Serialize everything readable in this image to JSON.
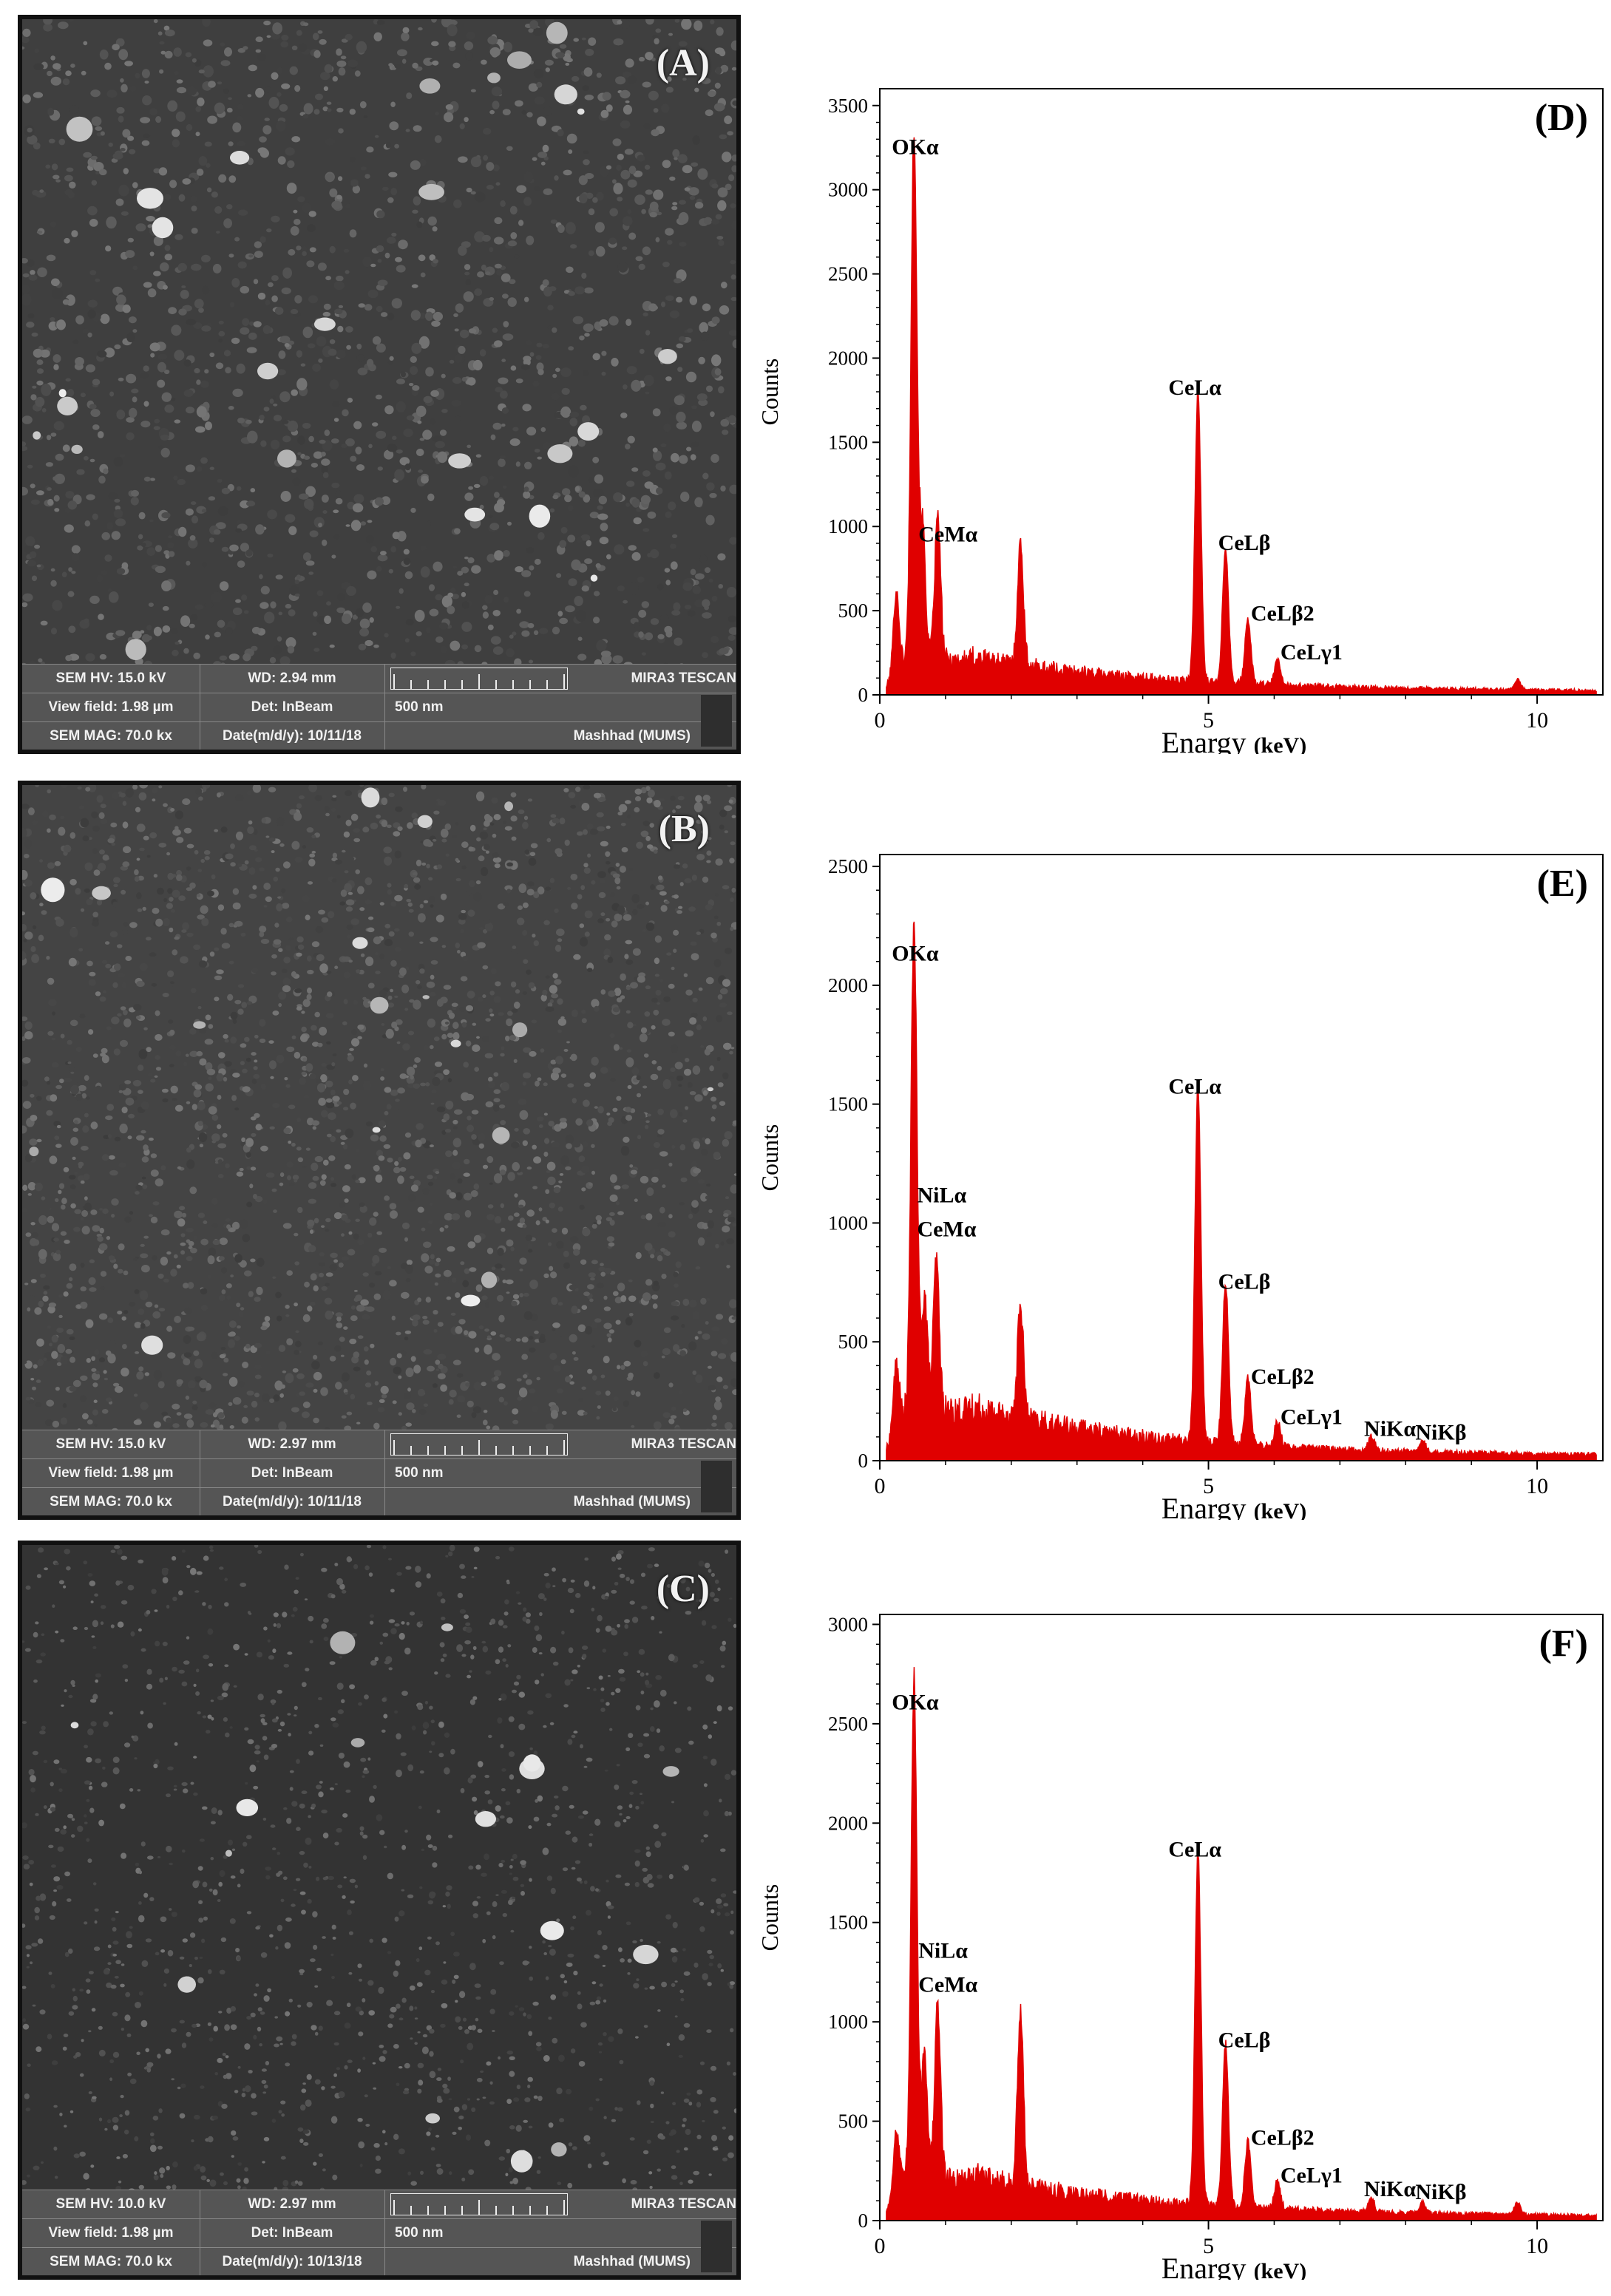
{
  "sem_panels": [
    {
      "label": "(A)",
      "hv": "SEM HV: 15.0 kV",
      "wd": "WD: 2.94 mm",
      "brand": "MIRA3 TESCAN",
      "view_field": "View field: 1.98 µm",
      "det": "Det: InBeam",
      "scale": "500 nm",
      "mag": "SEM MAG: 70.0 kx",
      "date": "Date(m/d/y): 10/11/18",
      "site": "Mashhad (MUMS)"
    },
    {
      "label": "(B)",
      "hv": "SEM HV: 15.0 kV",
      "wd": "WD: 2.97 mm",
      "brand": "MIRA3 TESCAN",
      "view_field": "View field: 1.98 µm",
      "det": "Det: InBeam",
      "scale": "500 nm",
      "mag": "SEM MAG: 70.0 kx",
      "date": "Date(m/d/y): 10/11/18",
      "site": "Mashhad (MUMS)"
    },
    {
      "label": "(C)",
      "hv": "SEM HV: 10.0 kV",
      "wd": "WD: 2.97 mm",
      "brand": "MIRA3 TESCAN",
      "view_field": "View field: 1.98 µm",
      "det": "Det: InBeam",
      "scale": "500 nm",
      "mag": "SEM MAG: 70.0 kx",
      "date": "Date(m/d/y): 10/13/18",
      "site": "Mashhad (MUMS)"
    }
  ],
  "chart_data": [
    {
      "type": "line",
      "label": "(D)",
      "xlabel": "Enargy",
      "xunit": "(keV)",
      "ylabel": "Counts",
      "xlim": [
        0,
        11
      ],
      "ylim": [
        0,
        3600
      ],
      "xticks": [
        0,
        5,
        10
      ],
      "yticks": [
        0,
        500,
        1000,
        1500,
        2000,
        2500,
        3000,
        3500
      ],
      "peaks": [
        {
          "x": 0.25,
          "y": 480
        },
        {
          "x": 0.52,
          "y": 3150
        },
        {
          "x": 0.65,
          "y": 800
        },
        {
          "x": 0.88,
          "y": 850
        },
        {
          "x": 2.14,
          "y": 720
        },
        {
          "x": 4.84,
          "y": 1720
        },
        {
          "x": 5.26,
          "y": 800
        },
        {
          "x": 5.6,
          "y": 380
        },
        {
          "x": 6.05,
          "y": 150
        },
        {
          "x": 9.7,
          "y": 60
        }
      ],
      "annotations": [
        {
          "text": "OKα",
          "x": 0.52,
          "y": 3150
        },
        {
          "text": "CeMα",
          "x": 0.88,
          "y": 850
        },
        {
          "text": "CeLα",
          "x": 4.84,
          "y": 1720
        },
        {
          "text": "CeLβ",
          "x": 5.26,
          "y": 800
        },
        {
          "text": "CeLβ2",
          "x": 5.6,
          "y": 380
        },
        {
          "text": "CeLγ1",
          "x": 6.05,
          "y": 150
        }
      ]
    },
    {
      "type": "line",
      "label": "(E)",
      "xlabel": "Enargy",
      "xunit": "(keV)",
      "ylabel": "Counts",
      "xlim": [
        0,
        11
      ],
      "ylim": [
        0,
        2550
      ],
      "xticks": [
        0,
        5,
        10
      ],
      "yticks": [
        0,
        500,
        1000,
        1500,
        2000,
        2500
      ],
      "peaks": [
        {
          "x": 0.25,
          "y": 280
        },
        {
          "x": 0.52,
          "y": 2060
        },
        {
          "x": 0.68,
          "y": 490
        },
        {
          "x": 0.86,
          "y": 630
        },
        {
          "x": 2.14,
          "y": 480
        },
        {
          "x": 4.84,
          "y": 1500
        },
        {
          "x": 5.26,
          "y": 680
        },
        {
          "x": 5.6,
          "y": 280
        },
        {
          "x": 6.05,
          "y": 110
        },
        {
          "x": 7.48,
          "y": 60
        },
        {
          "x": 8.26,
          "y": 45
        }
      ],
      "annotations": [
        {
          "text": "OKα",
          "x": 0.52,
          "y": 2060
        },
        {
          "text": "CeMα",
          "x": 0.86,
          "y": 900
        },
        {
          "text": "NiLα",
          "x": 0.86,
          "y": 630
        },
        {
          "text": "CeLα",
          "x": 4.84,
          "y": 1500
        },
        {
          "text": "CeLβ",
          "x": 5.26,
          "y": 680
        },
        {
          "text": "CeLβ2",
          "x": 5.6,
          "y": 280
        },
        {
          "text": "CeLγ1",
          "x": 6.05,
          "y": 110
        },
        {
          "text": "NiKα",
          "x": 7.48,
          "y": 60
        },
        {
          "text": "NiKβ",
          "x": 8.26,
          "y": 45
        }
      ]
    },
    {
      "type": "line",
      "label": "(F)",
      "xlabel": "Enargy",
      "xunit": "(keV)",
      "ylabel": "Counts",
      "xlim": [
        0,
        11
      ],
      "ylim": [
        0,
        3050
      ],
      "xticks": [
        0,
        5,
        10
      ],
      "yticks": [
        0,
        500,
        1000,
        1500,
        2000,
        2500,
        3000
      ],
      "peaks": [
        {
          "x": 0.25,
          "y": 320
        },
        {
          "x": 0.52,
          "y": 2520
        },
        {
          "x": 0.68,
          "y": 650
        },
        {
          "x": 0.88,
          "y": 870
        },
        {
          "x": 2.14,
          "y": 860
        },
        {
          "x": 4.84,
          "y": 1780
        },
        {
          "x": 5.26,
          "y": 820
        },
        {
          "x": 5.6,
          "y": 330
        },
        {
          "x": 6.05,
          "y": 140
        },
        {
          "x": 7.48,
          "y": 70
        },
        {
          "x": 8.26,
          "y": 55
        },
        {
          "x": 9.7,
          "y": 60
        }
      ],
      "annotations": [
        {
          "text": "OKα",
          "x": 0.52,
          "y": 2520
        },
        {
          "text": "CeMα",
          "x": 0.88,
          "y": 1100
        },
        {
          "text": "NiLα",
          "x": 0.88,
          "y": 870
        },
        {
          "text": "CeLα",
          "x": 4.84,
          "y": 1780
        },
        {
          "text": "CeLβ",
          "x": 5.26,
          "y": 820
        },
        {
          "text": "CeLβ2",
          "x": 5.6,
          "y": 330
        },
        {
          "text": "CeLγ1",
          "x": 6.05,
          "y": 140
        },
        {
          "text": "NiKα",
          "x": 7.48,
          "y": 70
        },
        {
          "text": "NiKβ",
          "x": 8.26,
          "y": 55
        }
      ]
    }
  ]
}
